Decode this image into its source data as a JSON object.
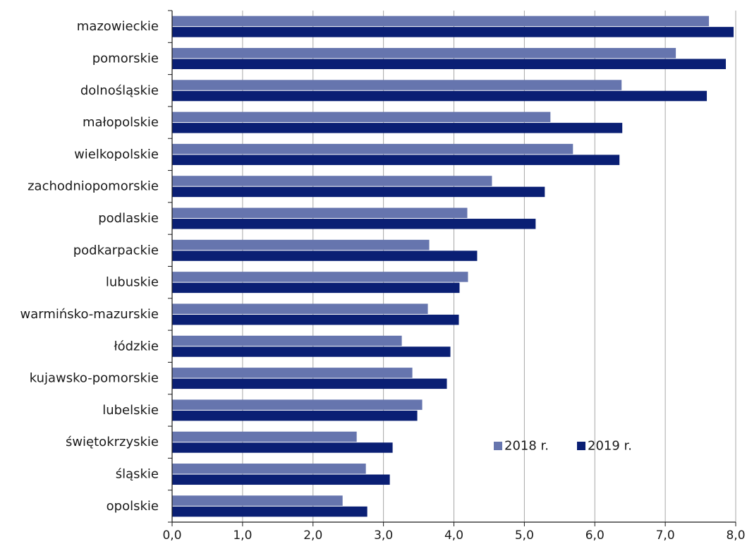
{
  "chart_data": {
    "type": "bar",
    "orientation": "horizontal",
    "categories": [
      "mazowieckie",
      "pomorskie",
      "dolnośląskie",
      "małopolskie",
      "wielkopolskie",
      "zachodniopomorskie",
      "podlaskie",
      "podkarpackie",
      "lubuskie",
      "warmińsko-mazurskie",
      "łódzkie",
      "kujawsko-pomorskie",
      "lubelskie",
      "świętokrzyskie",
      "śląskie",
      "opolskie"
    ],
    "series": [
      {
        "name": "2018 r.",
        "color": "#6675ae",
        "values": [
          7.62,
          7.15,
          6.38,
          5.37,
          5.69,
          4.54,
          4.19,
          3.65,
          4.2,
          3.63,
          3.26,
          3.41,
          3.55,
          2.62,
          2.75,
          2.42
        ]
      },
      {
        "name": "2019 r.",
        "color": "#0a1f74",
        "values": [
          7.97,
          7.86,
          7.59,
          6.39,
          6.35,
          5.29,
          5.16,
          4.33,
          4.08,
          4.07,
          3.95,
          3.9,
          3.48,
          3.13,
          3.09,
          2.77
        ]
      }
    ],
    "xlim": [
      0,
      8
    ],
    "xticks": [
      "0,0",
      "1,0",
      "2,0",
      "3,0",
      "4,0",
      "5,0",
      "6,0",
      "7,0",
      "8,0"
    ],
    "grid": "vertical",
    "legend_position": "bottom-right",
    "title": "",
    "xlabel": "",
    "ylabel": ""
  }
}
